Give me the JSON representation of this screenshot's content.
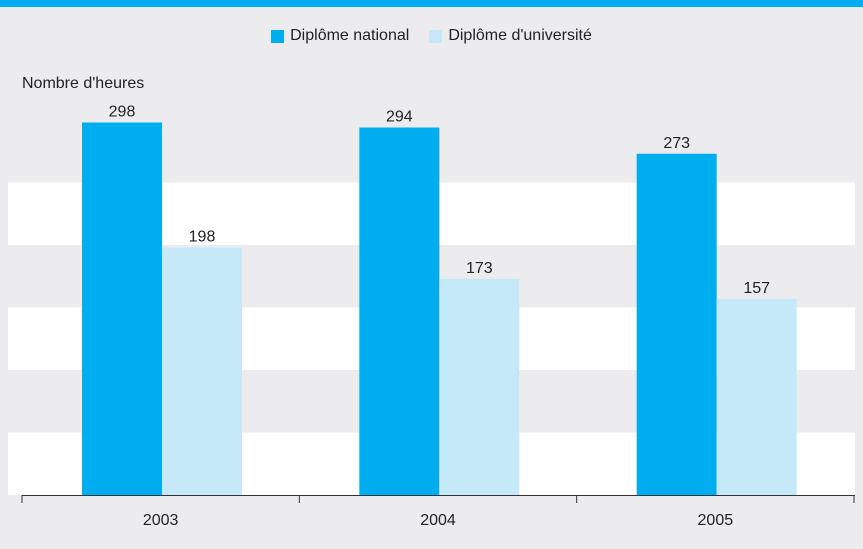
{
  "colors": {
    "accent": "#00aeef",
    "national": "#00aeef",
    "universite": "#c6e9f9",
    "band": "#ececee",
    "plot_white": "#ffffff"
  },
  "legend": {
    "items": [
      {
        "label": "Diplôme national",
        "color": "#00aeef"
      },
      {
        "label": "Diplôme d'université",
        "color": "#c6e9f9"
      }
    ]
  },
  "chart_data": {
    "type": "bar",
    "title": "",
    "xlabel": "",
    "ylabel": "Nombre d'heures",
    "categories": [
      "2003",
      "2004",
      "2005"
    ],
    "series": [
      {
        "name": "Diplôme national",
        "values": [
          298,
          294,
          273
        ]
      },
      {
        "name": "Diplôme d'université",
        "values": [
          198,
          173,
          157
        ]
      }
    ],
    "ylim": [
      0,
      300
    ],
    "grid": "horizontal banded",
    "legend_position": "top"
  }
}
